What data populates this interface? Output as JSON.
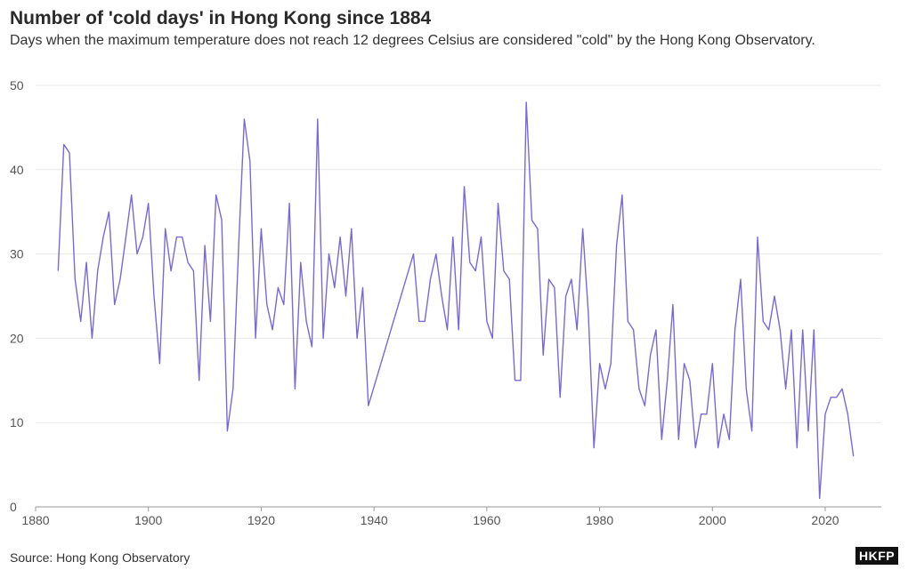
{
  "header": {
    "title": "Number of 'cold days' in Hong Kong since 1884",
    "subtitle": "Days when the maximum temperature does not reach 12 degrees Celsius are considered \"cold\" by the Hong Kong Observatory."
  },
  "footer": {
    "source": "Source: Hong Kong Observatory",
    "logo": "HKFP"
  },
  "chart_data": {
    "type": "line",
    "title": "Number of 'cold days' in Hong Kong since 1884",
    "xlabel": "",
    "ylabel": "",
    "xlim": [
      1880,
      2030
    ],
    "ylim": [
      0,
      50
    ],
    "xticks": [
      1880,
      1900,
      1920,
      1940,
      1960,
      1980,
      2000,
      2020
    ],
    "yticks": [
      0,
      10,
      20,
      30,
      40,
      50
    ],
    "grid": true,
    "color": "#7b68d8",
    "segments": [
      {
        "x": [
          1884,
          1885,
          1886,
          1887,
          1888,
          1889,
          1890,
          1891,
          1892,
          1893,
          1894,
          1895,
          1896,
          1897,
          1898,
          1899,
          1900,
          1901,
          1902,
          1903,
          1904,
          1905,
          1906,
          1907,
          1908,
          1909,
          1910,
          1911,
          1912,
          1913,
          1914,
          1915,
          1916,
          1917,
          1918,
          1919,
          1920,
          1921,
          1922,
          1923,
          1924,
          1925,
          1926,
          1927,
          1928,
          1929,
          1930,
          1931,
          1932,
          1933,
          1934,
          1935,
          1936,
          1937,
          1938,
          1939,
          1947,
          1948,
          1949,
          1950,
          1951,
          1952,
          1953,
          1954,
          1955,
          1956,
          1957,
          1958,
          1959,
          1960,
          1961,
          1962,
          1963,
          1964,
          1965,
          1966,
          1967,
          1968,
          1969,
          1970,
          1971,
          1972,
          1973,
          1974,
          1975,
          1976,
          1977,
          1978,
          1979,
          1980,
          1981,
          1982,
          1983,
          1984,
          1985,
          1986,
          1987,
          1988,
          1989,
          1990,
          1991,
          1992,
          1993,
          1994,
          1995,
          1996,
          1997,
          1998,
          1999,
          2000,
          2001,
          2002,
          2003,
          2004,
          2005,
          2006,
          2007,
          2008,
          2009,
          2010,
          2011,
          2012,
          2013,
          2014,
          2015,
          2016,
          2017,
          2018,
          2019,
          2020,
          2021,
          2022,
          2023,
          2024,
          2025
        ],
        "y": [
          28,
          43,
          42,
          27,
          22,
          29,
          20,
          28,
          32,
          35,
          24,
          27,
          32,
          37,
          30,
          32,
          36,
          25,
          17,
          33,
          28,
          32,
          32,
          29,
          28,
          15,
          31,
          22,
          37,
          34,
          9,
          14,
          31,
          46,
          41,
          20,
          33,
          24,
          21,
          26,
          24,
          36,
          14,
          29,
          22,
          19,
          46,
          20,
          30,
          26,
          32,
          25,
          33,
          20,
          26,
          12,
          30,
          22,
          22,
          27,
          30,
          25,
          21,
          32,
          21,
          38,
          29,
          28,
          32,
          22,
          20,
          36,
          28,
          27,
          15,
          15,
          48,
          34,
          33,
          18,
          27,
          26,
          13,
          25,
          27,
          21,
          33,
          23,
          7,
          17,
          14,
          17,
          31,
          37,
          22,
          21,
          14,
          12,
          18,
          21,
          8,
          15,
          24,
          8,
          17,
          15,
          7,
          11,
          11,
          17,
          7,
          11,
          8,
          21,
          27,
          14,
          9,
          32,
          22,
          21,
          25,
          21,
          14,
          21,
          7,
          21,
          9,
          21,
          1,
          11,
          13,
          13,
          14,
          11,
          6
        ]
      }
    ]
  }
}
